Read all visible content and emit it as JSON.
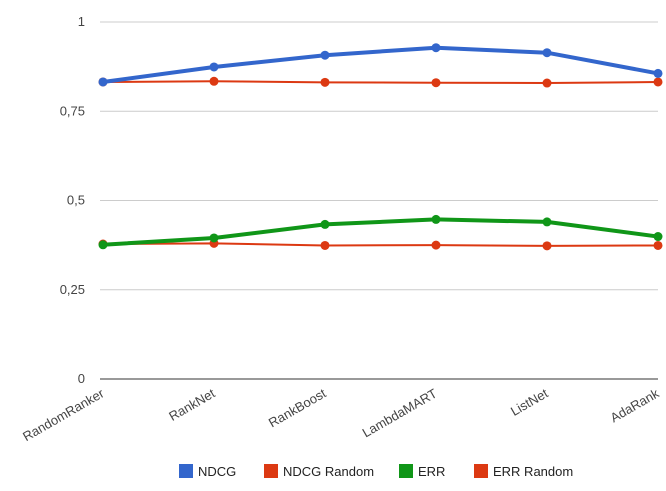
{
  "chart_data": {
    "type": "line",
    "title": "",
    "xlabel": "",
    "ylabel": "",
    "categories": [
      "RandomRanker",
      "RankNet",
      "RankBoost",
      "LambdaMART",
      "ListNet",
      "AdaRank"
    ],
    "ylim": [
      0,
      1
    ],
    "yticks": [
      0,
      0.25,
      0.5,
      0.75,
      1
    ],
    "ytick_labels": [
      "0",
      "0,25",
      "0,5",
      "0,75",
      "1"
    ],
    "grid": true,
    "legend_position": "bottom",
    "series": [
      {
        "name": "NDCG",
        "color": "#3366cc",
        "width": "thick",
        "values": [
          0.832,
          0.874,
          0.907,
          0.928,
          0.914,
          0.856
        ]
      },
      {
        "name": "NDCG Random",
        "color": "#dc3912",
        "width": "thin",
        "values": [
          0.832,
          0.834,
          0.831,
          0.83,
          0.829,
          0.832
        ]
      },
      {
        "name": "ERR",
        "color": "#109618",
        "width": "thick",
        "values": [
          0.376,
          0.395,
          0.433,
          0.447,
          0.44,
          0.399
        ]
      },
      {
        "name": "ERR Random",
        "color": "#dc3912",
        "width": "thin",
        "values": [
          0.378,
          0.38,
          0.374,
          0.375,
          0.373,
          0.374
        ]
      }
    ]
  }
}
